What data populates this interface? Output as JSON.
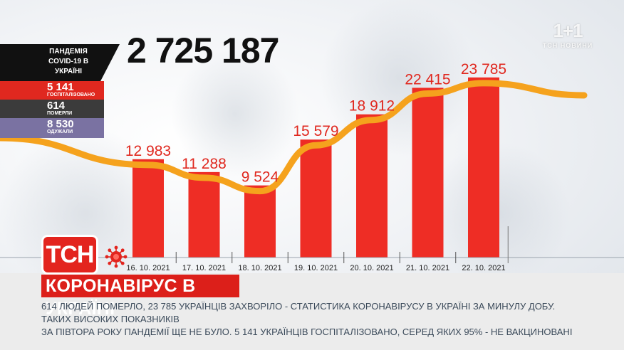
{
  "watermark": {
    "logo": "1+1",
    "subtitle": "ТСН НОВИНИ"
  },
  "total_cases": "2 725 187",
  "panel": {
    "title": "ПАНДЕМІЯ COVID-19 В УКРАЇНІ",
    "hospitalized_value": "5 141",
    "hospitalized_label": "ГОСПІТАЛІЗОВАНО",
    "died_value": "614",
    "died_label": "ПОМЕРЛИ",
    "recovered_value": "8 530",
    "recovered_label": "ОДУЖАЛИ"
  },
  "colors": {
    "bar": "#ee2d25",
    "bar_label": "#e0281f",
    "trend": "#f5a21d",
    "hospitalized": "#e0281f",
    "died": "#3b3b3b",
    "recovered": "#7a72a2",
    "brand": "#e3241e"
  },
  "logo_text": "ТСН",
  "logo_icon": "virus-icon",
  "headline": "КОРОНАВІРУС В УКРАЇНІ",
  "ticker": {
    "line1": "614 людей померло, 23 785 українців захворіло - статистика коронавірусу в Україні за минулу добу. Таких високих показників",
    "line2": "за півтора року пандемії ще не було.  5 141 українців госпіталізовано, серед яких 95% - не вакциновані"
  },
  "chart_data": {
    "type": "bar",
    "title": "",
    "xlabel": "",
    "ylabel": "",
    "categories": [
      "16. 10. 2021",
      "17. 10. 2021",
      "18. 10. 2021",
      "19. 10. 2021",
      "20. 10. 2021",
      "21. 10. 2021",
      "22. 10. 2021"
    ],
    "values": [
      12983,
      11288,
      9524,
      15579,
      18912,
      22415,
      23785
    ],
    "value_labels": [
      "12 983",
      "11 288",
      "9 524",
      "15 579",
      "18 912",
      "22 415",
      "23 785"
    ],
    "ylim": [
      0,
      28000
    ],
    "grid": false,
    "legend": "none",
    "trend_line": true
  }
}
